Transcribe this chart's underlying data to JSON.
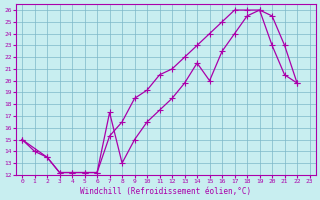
{
  "xlabel": "Windchill (Refroidissement éolien,°C)",
  "bg_color": "#c8eef0",
  "grid_color": "#7db8c8",
  "line_color": "#aa00aa",
  "xlim": [
    -0.5,
    23.5
  ],
  "ylim": [
    12,
    26.5
  ],
  "xticks": [
    0,
    1,
    2,
    3,
    4,
    5,
    6,
    7,
    8,
    9,
    10,
    11,
    12,
    13,
    14,
    15,
    16,
    17,
    18,
    19,
    20,
    21,
    22,
    23
  ],
  "yticks": [
    12,
    13,
    14,
    15,
    16,
    17,
    18,
    19,
    20,
    21,
    22,
    23,
    24,
    25,
    26
  ],
  "line1_x": [
    0,
    1,
    2,
    3,
    4,
    5,
    6,
    7,
    8,
    9,
    10,
    11,
    12,
    13,
    14,
    15,
    16,
    17,
    18,
    19,
    20,
    21,
    22
  ],
  "line1_y": [
    15,
    14,
    13.5,
    12.2,
    12.2,
    12.2,
    12.2,
    15.3,
    16.5,
    18.5,
    19.2,
    20.5,
    21.0,
    22.0,
    23.0,
    24.0,
    25.0,
    26.0,
    26.0,
    26.0,
    25.5,
    23.0,
    19.8
  ],
  "line2_x": [
    0,
    2,
    3,
    4,
    5,
    6,
    7,
    8,
    9,
    10,
    11,
    12,
    13,
    14,
    15,
    16,
    17,
    18,
    19,
    20,
    21,
    22
  ],
  "line2_y": [
    15,
    13.5,
    12.2,
    12.2,
    12.2,
    12.2,
    17.3,
    13.0,
    15.0,
    16.5,
    17.5,
    18.5,
    19.8,
    21.5,
    20.0,
    22.5,
    24.0,
    25.5,
    26.0,
    23.0,
    20.5,
    19.8
  ]
}
